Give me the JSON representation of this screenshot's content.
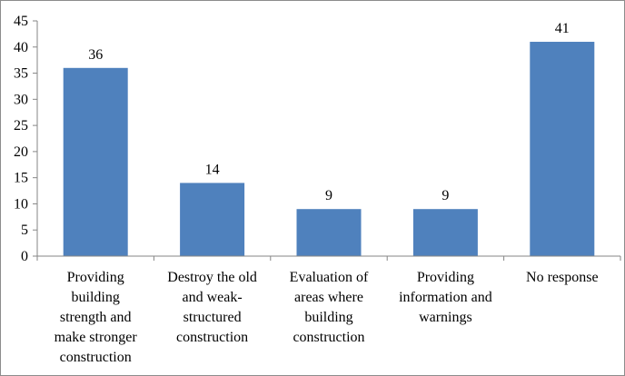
{
  "chart_data": {
    "type": "bar",
    "categories": [
      [
        "Providing",
        "building",
        "strength and",
        "make stronger",
        "construction"
      ],
      [
        "Destroy the old",
        "and weak-",
        "structured",
        "construction"
      ],
      [
        "Evaluation of",
        "areas where",
        "building",
        "construction"
      ],
      [
        "Providing",
        "information and",
        "warnings"
      ],
      [
        "No response"
      ]
    ],
    "values": [
      36,
      14,
      9,
      9,
      41
    ],
    "data_labels": [
      "36",
      "14",
      "9",
      "9",
      "41"
    ],
    "yticks": [
      0,
      5,
      10,
      15,
      20,
      25,
      30,
      35,
      40,
      45
    ],
    "ylim": [
      0,
      45
    ],
    "title": "",
    "xlabel": "",
    "ylabel": "",
    "grid": false,
    "legend": "none",
    "colors": {
      "bar": "#4f81bd",
      "axis": "#868686",
      "frame": "#8c8c8c"
    }
  }
}
